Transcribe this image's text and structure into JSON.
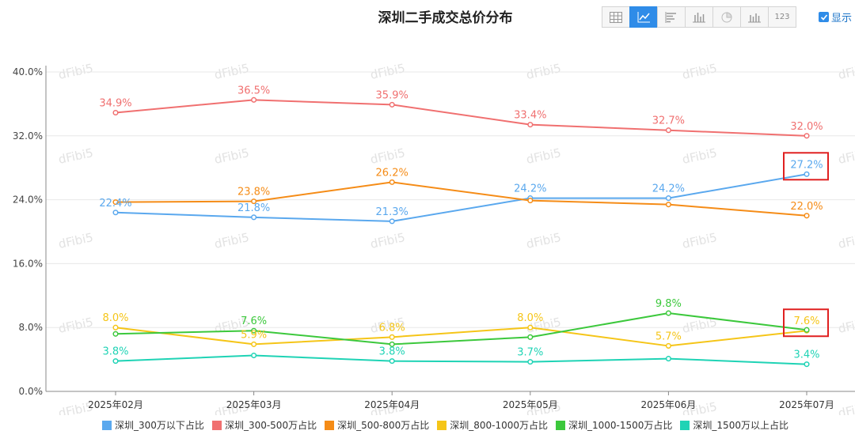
{
  "title": "深圳二手成交总价分布",
  "toolbar": {
    "buttons": [
      {
        "icon": "table-icon",
        "label": ""
      },
      {
        "icon": "line-chart-icon",
        "label": ""
      },
      {
        "icon": "horizontal-bar-icon",
        "label": ""
      },
      {
        "icon": "bar-chart-icon",
        "label": ""
      },
      {
        "icon": "pie-chart-icon",
        "label": ""
      },
      {
        "icon": "stacked-bar-icon",
        "label": ""
      },
      {
        "icon": "number-icon",
        "label": "123"
      }
    ],
    "active_index": 1,
    "show_label": "显示",
    "show_checked": true
  },
  "watermark": "dFibi5",
  "chart_data": {
    "type": "line",
    "title": "深圳二手成交总价分布",
    "x": [
      "2025年02月",
      "2025年03月",
      "2025年04月",
      "2025年05月",
      "2025年06月",
      "2025年07月"
    ],
    "ylim": [
      0,
      40
    ],
    "yticks": [
      "0.0%",
      "8.0%",
      "16.0%",
      "24.0%",
      "32.0%",
      "40.0%"
    ],
    "ytick_values": [
      0,
      8,
      16,
      24,
      32,
      40
    ],
    "grid": true,
    "legend_position": "bottom",
    "series": [
      {
        "name": "深圳_300万以下占比",
        "color": "#5aa8ee",
        "values": [
          22.4,
          21.8,
          21.3,
          24.2,
          24.2,
          27.2
        ],
        "labels": [
          "22.4%",
          "21.8%",
          "21.3%",
          "24.2%",
          "24.2%",
          "27.2%"
        ]
      },
      {
        "name": "深圳_300-500万占比",
        "color": "#f07070",
        "values": [
          34.9,
          36.5,
          35.9,
          33.4,
          32.7,
          32.0
        ],
        "labels": [
          "34.9%",
          "36.5%",
          "35.9%",
          "33.4%",
          "32.7%",
          "32.0%"
        ]
      },
      {
        "name": "深圳_500-800万占比",
        "color": "#f58c17",
        "values": [
          23.7,
          23.8,
          26.2,
          23.9,
          23.4,
          22.0
        ],
        "labels": [
          "",
          "23.8%",
          "26.2%",
          "",
          "",
          "22.0%"
        ]
      },
      {
        "name": "深圳_800-1000万占比",
        "color": "#f5c518",
        "values": [
          8.0,
          5.9,
          6.8,
          8.0,
          5.7,
          7.6
        ],
        "labels": [
          "8.0%",
          "5.9%",
          "6.8%",
          "8.0%",
          "5.7%",
          "7.6%"
        ]
      },
      {
        "name": "深圳_1000-1500万占比",
        "color": "#3cc83c",
        "values": [
          7.2,
          7.6,
          5.9,
          6.8,
          9.8,
          7.7
        ],
        "labels": [
          "",
          "7.6%",
          "",
          "",
          "9.8%",
          ""
        ]
      },
      {
        "name": "深圳_1500万以上占比",
        "color": "#1fd3b5",
        "values": [
          3.8,
          4.5,
          3.8,
          3.7,
          4.1,
          3.4
        ],
        "labels": [
          "3.8%",
          "",
          "3.8%",
          "3.7%",
          "",
          "3.4%"
        ]
      }
    ],
    "highlight_boxes": [
      {
        "series_index": 0,
        "point_index": 5,
        "color": "#e02020"
      },
      {
        "series_index": 3,
        "point_index": 5,
        "color": "#e02020"
      }
    ]
  }
}
